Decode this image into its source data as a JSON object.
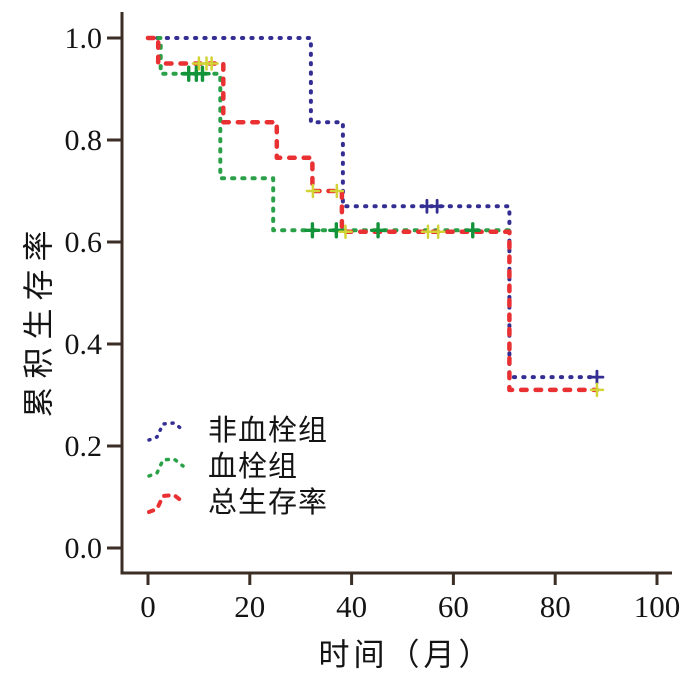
{
  "figure": {
    "background": "#ffffff",
    "axis_color": "#3b2e25",
    "text_color": "#141414"
  },
  "axes": {
    "x": {
      "label": "时间（月）",
      "range": [
        0,
        100
      ],
      "ticks": [
        {
          "v": 0,
          "t": "0"
        },
        {
          "v": 20,
          "t": "20"
        },
        {
          "v": 40,
          "t": "40"
        },
        {
          "v": 60,
          "t": "60"
        },
        {
          "v": 80,
          "t": "80"
        },
        {
          "v": 100,
          "t": "100"
        }
      ]
    },
    "y": {
      "label": "累积生存率",
      "range": [
        0,
        1
      ],
      "ticks": [
        {
          "v": 1.0,
          "t": "1.0"
        },
        {
          "v": 0.8,
          "t": "0.8"
        },
        {
          "v": 0.6,
          "t": "0.6"
        },
        {
          "v": 0.4,
          "t": "0.4"
        },
        {
          "v": 0.2,
          "t": "0.2"
        },
        {
          "v": 0.0,
          "t": "0.0"
        }
      ]
    }
  },
  "legend": {
    "items": [
      {
        "label": "非血栓组",
        "color": "#342e93",
        "line_style": "dotted"
      },
      {
        "label": "血栓组",
        "color": "#2aa148",
        "line_style": "dotted"
      },
      {
        "label": "总生存率",
        "color": "#e93032",
        "line_style": "dashed"
      }
    ]
  },
  "chart_data": {
    "type": "line",
    "subtype": "kaplan-meier-step",
    "title": "",
    "xlabel": "时间（月）",
    "ylabel": "累积生存率",
    "xlim": [
      0,
      100
    ],
    "ylim": [
      0,
      1.05
    ],
    "grid": false,
    "legend_position": "lower-left",
    "series": [
      {
        "name": "非血栓组",
        "color": "#342e93",
        "line_style": "dotted",
        "censor_color": "#342e93",
        "points": [
          [
            0,
            1.0
          ],
          [
            32,
            1.0
          ],
          [
            32,
            0.835
          ],
          [
            38.3,
            0.835
          ],
          [
            38.3,
            0.67
          ],
          [
            71,
            0.67
          ],
          [
            71,
            0.335
          ],
          [
            88.2,
            0.335
          ]
        ],
        "censors": [
          [
            54.8,
            0.67
          ],
          [
            56.8,
            0.67
          ],
          [
            88.2,
            0.335
          ]
        ]
      },
      {
        "name": "血栓组",
        "color": "#2aa148",
        "line_style": "dotted",
        "censor_color": "#13933a",
        "points": [
          [
            0,
            1.0
          ],
          [
            2.5,
            1.0
          ],
          [
            2.5,
            0.93
          ],
          [
            14.2,
            0.93
          ],
          [
            14.2,
            0.725
          ],
          [
            24.6,
            0.725
          ],
          [
            24.6,
            0.623
          ],
          [
            71,
            0.623
          ]
        ],
        "censors": [
          [
            8,
            0.93
          ],
          [
            9.5,
            0.93
          ],
          [
            10.7,
            0.93
          ],
          [
            32.3,
            0.623
          ],
          [
            37,
            0.623
          ],
          [
            45.2,
            0.623
          ],
          [
            63.8,
            0.623
          ]
        ]
      },
      {
        "name": "总生存率",
        "color": "#e93032",
        "line_style": "dashed",
        "censor_color": "#d2d334",
        "points": [
          [
            0,
            1.0
          ],
          [
            2,
            1.0
          ],
          [
            2,
            0.95
          ],
          [
            14.8,
            0.95
          ],
          [
            14.8,
            0.835
          ],
          [
            25.3,
            0.835
          ],
          [
            25.3,
            0.765
          ],
          [
            32.3,
            0.765
          ],
          [
            32.3,
            0.7
          ],
          [
            38.1,
            0.7
          ],
          [
            38.1,
            0.62
          ],
          [
            71,
            0.62
          ],
          [
            71,
            0.31
          ],
          [
            88.2,
            0.31
          ]
        ],
        "censors": [
          [
            10,
            0.95
          ],
          [
            11.5,
            0.95
          ],
          [
            12.5,
            0.95
          ],
          [
            32.4,
            0.7
          ],
          [
            37.1,
            0.7
          ],
          [
            38.8,
            0.62
          ],
          [
            55,
            0.62
          ],
          [
            57,
            0.62
          ],
          [
            88.2,
            0.31
          ]
        ]
      }
    ]
  }
}
